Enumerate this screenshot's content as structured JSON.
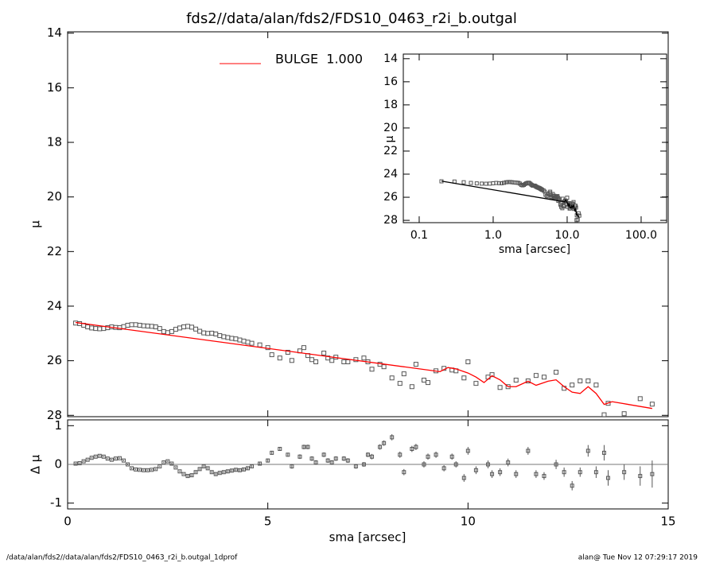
{
  "chart_data": [
    {
      "type": "scatter",
      "title": "fds2//data/alan/fds2/FDS10_0463_r2i_b.outgal",
      "ylabel": "μ",
      "x": [
        0.2,
        0.3,
        0.4,
        0.5,
        0.6,
        0.7,
        0.8,
        0.9,
        1.0,
        1.1,
        1.2,
        1.3,
        1.4,
        1.5,
        1.6,
        1.7,
        1.8,
        1.9,
        2.0,
        2.1,
        2.2,
        2.3,
        2.4,
        2.5,
        2.6,
        2.7,
        2.8,
        2.9,
        3.0,
        3.1,
        3.2,
        3.3,
        3.4,
        3.5,
        3.6,
        3.7,
        3.8,
        3.9,
        4.0,
        4.1,
        4.2,
        4.3,
        4.4,
        4.5,
        4.6,
        4.8,
        5.0,
        5.1,
        5.3,
        5.5,
        5.6,
        5.8,
        5.9,
        6.0,
        6.1,
        6.2,
        6.4,
        6.5,
        6.6,
        6.7,
        6.9,
        7.0,
        7.2,
        7.4,
        7.5,
        7.6,
        7.8,
        7.9,
        8.1,
        8.3,
        8.4,
        8.6,
        8.7,
        8.9,
        9.0,
        9.2,
        9.4,
        9.6,
        9.7,
        9.9,
        10.0,
        10.2,
        10.5,
        10.6,
        10.8,
        11.0,
        11.2,
        11.5,
        11.7,
        11.9,
        12.2,
        12.4,
        12.6,
        12.8,
        13.0,
        13.2,
        13.4,
        13.5,
        13.9,
        14.3,
        14.6
      ],
      "values": [
        24.62,
        24.64,
        24.7,
        24.76,
        24.8,
        24.82,
        24.83,
        24.82,
        24.79,
        24.76,
        24.78,
        24.79,
        24.75,
        24.7,
        24.68,
        24.68,
        24.7,
        24.72,
        24.73,
        24.74,
        24.76,
        24.82,
        24.93,
        24.97,
        24.93,
        24.85,
        24.8,
        24.76,
        24.74,
        24.77,
        24.84,
        24.92,
        24.98,
        25.0,
        24.99,
        25.02,
        25.08,
        25.12,
        25.15,
        25.18,
        25.2,
        25.24,
        25.28,
        25.32,
        25.36,
        25.42,
        25.52,
        25.78,
        25.9,
        25.69,
        25.99,
        25.64,
        25.52,
        25.81,
        25.96,
        26.04,
        25.72,
        25.9,
        25.99,
        25.87,
        26.04,
        26.04,
        25.96,
        25.9,
        26.04,
        26.31,
        26.13,
        26.22,
        26.63,
        26.83,
        26.48,
        26.95,
        26.13,
        26.71,
        26.8,
        26.37,
        26.28,
        26.34,
        26.37,
        26.63,
        26.04,
        26.83,
        26.6,
        26.51,
        26.98,
        26.95,
        26.71,
        26.74,
        26.54,
        26.6,
        26.42,
        27.01,
        26.89,
        26.74,
        26.74,
        26.89,
        27.98,
        27.56,
        27.94,
        27.39,
        27.59
      ],
      "point_color": "#555555",
      "series": [
        {
          "name": "BULGE  1.000",
          "color": "#ff0000",
          "x": [
            0.2,
            9.3,
            9.5,
            9.7,
            10.0,
            10.2,
            10.4,
            10.6,
            10.8,
            11.0,
            11.2,
            11.5,
            11.7,
            12.0,
            12.2,
            12.4,
            12.6,
            12.8,
            13.0,
            13.2,
            13.4,
            13.6,
            14.0,
            14.6
          ],
          "values": [
            24.6,
            26.4,
            26.25,
            26.3,
            26.45,
            26.6,
            26.8,
            26.55,
            26.7,
            26.95,
            26.95,
            26.75,
            26.9,
            26.75,
            26.7,
            26.95,
            27.15,
            27.2,
            26.95,
            27.2,
            27.6,
            27.5,
            27.6,
            27.75
          ]
        }
      ],
      "xlim": [
        0,
        15
      ],
      "xticks": [
        0,
        5,
        10,
        15
      ],
      "ylim": [
        28.05,
        13.95
      ],
      "yticks": [
        14,
        16,
        18,
        20,
        22,
        24,
        26,
        28
      ]
    },
    {
      "type": "errorbar",
      "xlabel": "sma [arcsec]",
      "ylabel": "Δ μ",
      "x": [
        0.2,
        0.3,
        0.4,
        0.5,
        0.6,
        0.7,
        0.8,
        0.9,
        1.0,
        1.1,
        1.2,
        1.3,
        1.4,
        1.5,
        1.6,
        1.7,
        1.8,
        1.9,
        2.0,
        2.1,
        2.2,
        2.3,
        2.4,
        2.5,
        2.6,
        2.7,
        2.8,
        2.9,
        3.0,
        3.1,
        3.2,
        3.3,
        3.4,
        3.5,
        3.6,
        3.7,
        3.8,
        3.9,
        4.0,
        4.1,
        4.2,
        4.3,
        4.4,
        4.5,
        4.6,
        4.8,
        5.0,
        5.1,
        5.3,
        5.5,
        5.6,
        5.8,
        5.9,
        6.0,
        6.1,
        6.2,
        6.4,
        6.5,
        6.6,
        6.7,
        6.9,
        7.0,
        7.2,
        7.4,
        7.5,
        7.6,
        7.8,
        7.9,
        8.1,
        8.3,
        8.4,
        8.6,
        8.7,
        8.9,
        9.0,
        9.2,
        9.4,
        9.6,
        9.7,
        9.9,
        10.0,
        10.2,
        10.5,
        10.6,
        10.8,
        11.0,
        11.2,
        11.5,
        11.7,
        11.9,
        12.2,
        12.4,
        12.6,
        12.8,
        13.0,
        13.2,
        13.4,
        13.5,
        13.9,
        14.3,
        14.6
      ],
      "values": [
        0.02,
        0.03,
        0.08,
        0.12,
        0.17,
        0.2,
        0.22,
        0.2,
        0.15,
        0.12,
        0.15,
        0.16,
        0.1,
        0.0,
        -0.1,
        -0.13,
        -0.14,
        -0.15,
        -0.15,
        -0.14,
        -0.12,
        -0.05,
        0.05,
        0.08,
        0.02,
        -0.08,
        -0.18,
        -0.25,
        -0.3,
        -0.28,
        -0.2,
        -0.12,
        -0.05,
        -0.1,
        -0.2,
        -0.25,
        -0.22,
        -0.2,
        -0.18,
        -0.16,
        -0.14,
        -0.15,
        -0.13,
        -0.1,
        -0.05,
        0.02,
        0.1,
        0.3,
        0.4,
        0.25,
        -0.05,
        0.2,
        0.45,
        0.45,
        0.15,
        0.05,
        0.25,
        0.1,
        0.05,
        0.15,
        0.15,
        0.1,
        -0.05,
        0.0,
        0.25,
        0.2,
        0.45,
        0.55,
        0.7,
        0.25,
        -0.2,
        0.4,
        0.45,
        0.0,
        0.2,
        0.25,
        -0.1,
        0.2,
        0.0,
        -0.35,
        0.35,
        -0.15,
        0.0,
        -0.25,
        -0.2,
        0.05,
        -0.25,
        0.35,
        -0.25,
        -0.3,
        0.0,
        -0.2,
        -0.55,
        -0.2,
        0.35,
        -0.2,
        0.3,
        -0.35,
        -0.2,
        -0.3,
        -0.25
      ],
      "errors": [
        0.02,
        0.02,
        0.02,
        0.02,
        0.02,
        0.02,
        0.02,
        0.02,
        0.02,
        0.02,
        0.02,
        0.02,
        0.02,
        0.02,
        0.02,
        0.02,
        0.02,
        0.02,
        0.02,
        0.02,
        0.02,
        0.02,
        0.02,
        0.02,
        0.02,
        0.02,
        0.02,
        0.02,
        0.03,
        0.03,
        0.03,
        0.03,
        0.03,
        0.03,
        0.03,
        0.03,
        0.03,
        0.03,
        0.04,
        0.04,
        0.04,
        0.04,
        0.04,
        0.04,
        0.04,
        0.05,
        0.05,
        0.05,
        0.05,
        0.05,
        0.06,
        0.06,
        0.06,
        0.06,
        0.06,
        0.06,
        0.06,
        0.06,
        0.06,
        0.06,
        0.06,
        0.06,
        0.06,
        0.06,
        0.06,
        0.07,
        0.07,
        0.07,
        0.08,
        0.08,
        0.08,
        0.08,
        0.08,
        0.08,
        0.08,
        0.08,
        0.08,
        0.08,
        0.08,
        0.1,
        0.1,
        0.1,
        0.1,
        0.1,
        0.1,
        0.1,
        0.1,
        0.1,
        0.1,
        0.1,
        0.12,
        0.12,
        0.12,
        0.12,
        0.15,
        0.15,
        0.2,
        0.2,
        0.2,
        0.25,
        0.35
      ],
      "point_color": "#555555",
      "xlim": [
        0,
        15
      ],
      "xticks": [
        0,
        5,
        10,
        15
      ],
      "ylim": [
        -1.15,
        1.15
      ],
      "yticks": [
        -1,
        0,
        1
      ]
    },
    {
      "type": "scatter",
      "xlabel": "sma [arcsec]",
      "ylabel": "μ",
      "log_x": true,
      "line_color": "#000000",
      "xlim": [
        0.061,
        221
      ],
      "xticks": [
        {
          "value": 0.1,
          "label": "0.1"
        },
        {
          "value": 1,
          "label": "1.0"
        },
        {
          "value": 10,
          "label": "10.0"
        },
        {
          "value": 100,
          "label": "100.0"
        }
      ],
      "ylim": [
        28.2,
        13.6
      ],
      "yticks": [
        14,
        16,
        18,
        20,
        22,
        24,
        26,
        28
      ]
    }
  ],
  "footer": {
    "left": "/data/alan/fds2//data/alan/fds2/FDS10_0463_r2i_b.outgal_1dprof",
    "right": "alan@  Tue Nov 12 07:29:17 2019"
  }
}
